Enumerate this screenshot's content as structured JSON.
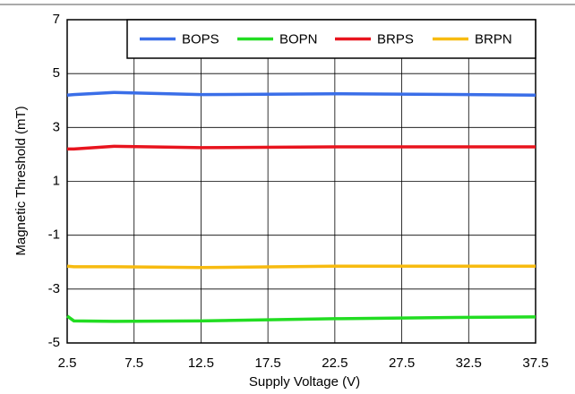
{
  "chart_data": {
    "type": "line",
    "x_label": "Supply Voltage (V)",
    "y_label": "Magnetic Threshold (mT)",
    "x": [
      2.5,
      3,
      6,
      12.5,
      22.5,
      30,
      37.5
    ],
    "series": [
      {
        "name": "BOPS",
        "color": "#3a6ee8",
        "values": [
          4.2,
          4.22,
          4.3,
          4.22,
          4.25,
          4.23,
          4.2
        ]
      },
      {
        "name": "BOPN",
        "color": "#22dd22",
        "values": [
          -4.0,
          -4.18,
          -4.2,
          -4.18,
          -4.1,
          -4.06,
          -4.03
        ]
      },
      {
        "name": "BRPS",
        "color": "#e8141e",
        "values": [
          2.2,
          2.2,
          2.3,
          2.25,
          2.28,
          2.28,
          2.28
        ]
      },
      {
        "name": "BRPN",
        "color": "#f7bb10",
        "values": [
          -2.15,
          -2.17,
          -2.17,
          -2.2,
          -2.15,
          -2.15,
          -2.15
        ]
      }
    ],
    "xlim": [
      2.5,
      37.5
    ],
    "xticks": [
      2.5,
      7.5,
      12.5,
      17.5,
      22.5,
      27.5,
      32.5,
      37.5
    ],
    "ylim": [
      -5,
      7
    ],
    "yticks": [
      -5,
      -3,
      -1,
      1,
      3,
      5,
      7
    ],
    "grid": true,
    "legend": "top-right"
  }
}
